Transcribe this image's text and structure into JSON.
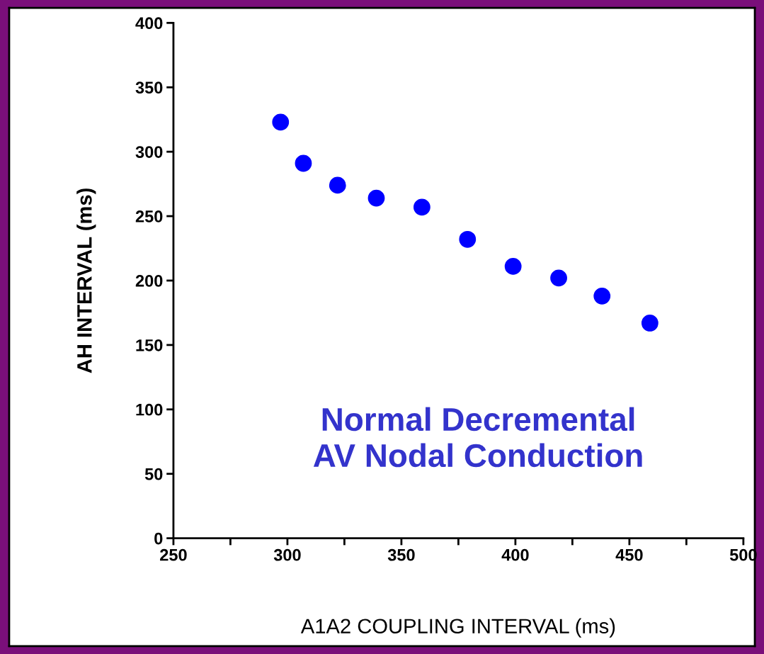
{
  "chart_data": {
    "type": "scatter",
    "xlabel": "A1A2 COUPLING INTERVAL (ms)",
    "ylabel": "AH INTERVAL (ms)",
    "annotations": [
      "Normal Decremental\nAV Nodal Conduction"
    ],
    "x": [
      297,
      307,
      322,
      339,
      359,
      379,
      399,
      419,
      438,
      459
    ],
    "series": [
      {
        "color": "#0000ff",
        "values": [
          323,
          291,
          274,
          264,
          257,
          232,
          211,
          202,
          188,
          167
        ]
      }
    ],
    "marker": "circle",
    "grid": false,
    "legend": false,
    "xlim": [
      250,
      500
    ],
    "xticks": [
      250,
      {
        "value": 275,
        "label": null
      },
      300,
      {
        "value": 325,
        "label": null
      },
      350,
      {
        "value": 375,
        "label": null
      },
      400,
      {
        "value": 425,
        "label": null
      },
      450,
      {
        "value": 475,
        "label": null
      },
      500
    ],
    "ylim": [
      0,
      400
    ],
    "yticks": [
      0,
      50,
      100,
      150,
      200,
      250,
      300,
      350,
      400
    ]
  }
}
